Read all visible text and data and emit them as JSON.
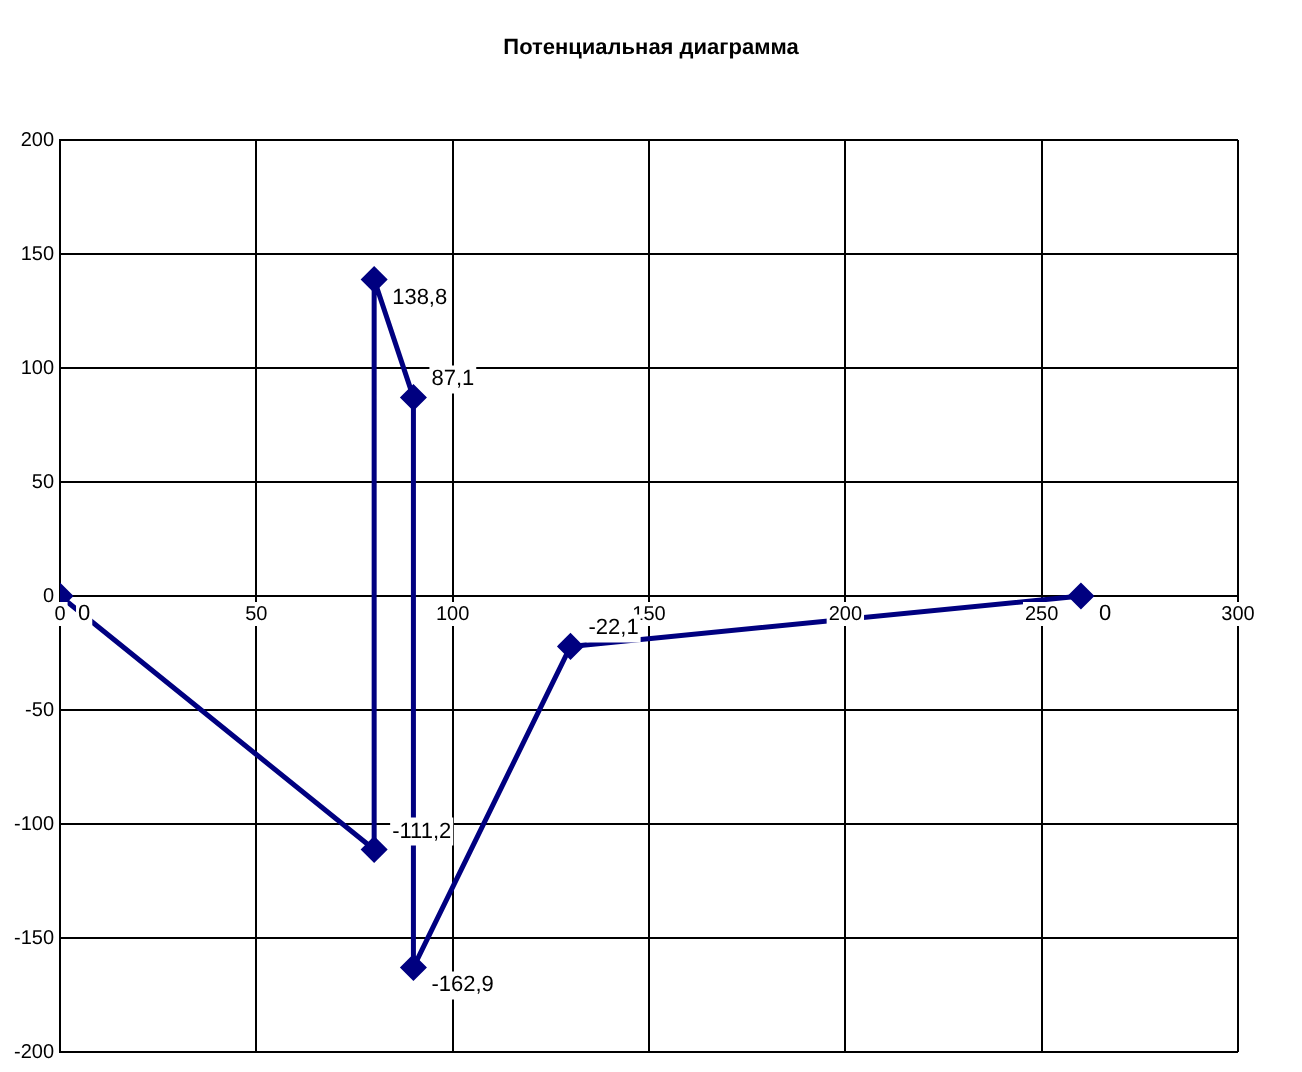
{
  "chart_data": {
    "type": "line",
    "title": "Потенциальная диаграмма",
    "x": [
      0,
      80,
      80,
      90,
      90,
      130,
      260
    ],
    "series": [
      {
        "color": "#000080",
        "values": [
          0,
          -111.2,
          138.8,
          87.1,
          -162.9,
          -22.1,
          0
        ],
        "value_labels": [
          "0",
          "-111,2",
          "138,8",
          "87,1",
          "-162,9",
          "-22,1",
          "0"
        ]
      }
    ],
    "xlim": [
      0,
      300
    ],
    "xticks": [
      0,
      50,
      100,
      150,
      200,
      250,
      300
    ],
    "ylim": [
      -200,
      200
    ],
    "yticks": [
      -200,
      -150,
      -100,
      -50,
      0,
      50,
      100,
      150,
      200
    ],
    "grid": true,
    "legend": false,
    "marker": "diamond",
    "line_style": "solid"
  }
}
